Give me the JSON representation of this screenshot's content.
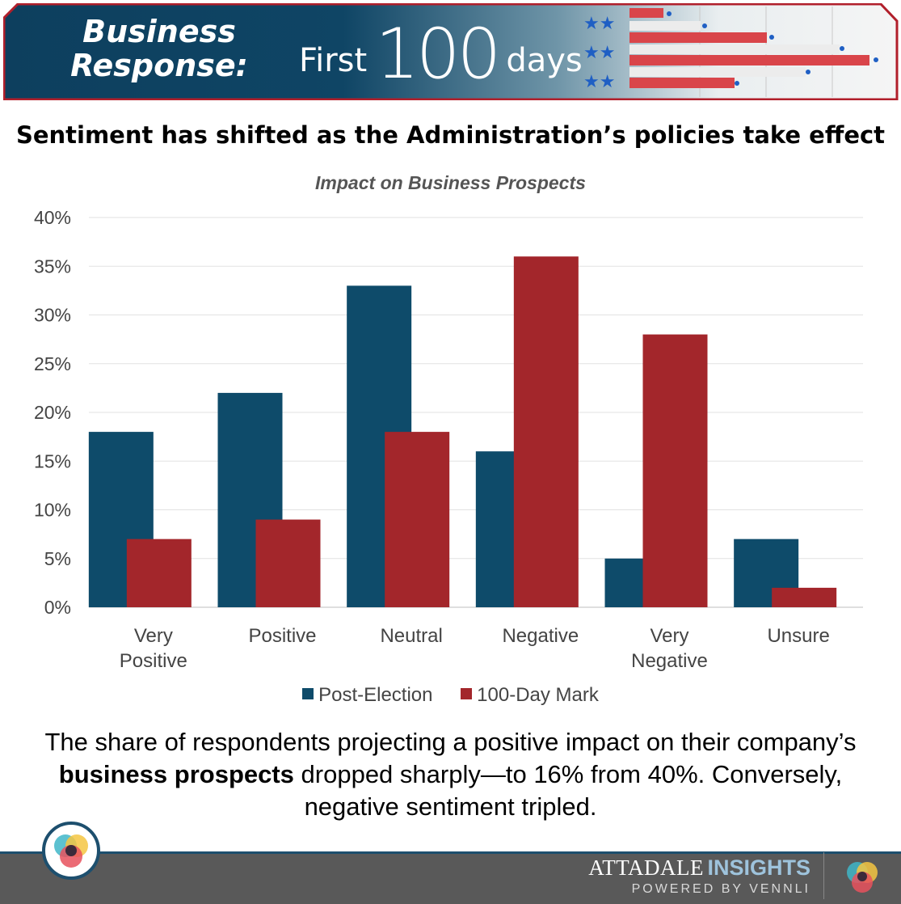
{
  "header": {
    "title_line1": "Business",
    "title_line2": "Response:",
    "first_word": "First",
    "number": "100",
    "last_word": "days"
  },
  "headline": "Sentiment has shifted as the Administration’s policies take effect",
  "chart_data": {
    "type": "bar",
    "title": "Impact on Business Prospects",
    "categories": [
      [
        "Very",
        "Positive"
      ],
      [
        "Positive"
      ],
      [
        "Neutral"
      ],
      [
        "Negative"
      ],
      [
        "Very",
        "Negative"
      ],
      [
        "Unsure"
      ]
    ],
    "series": [
      {
        "name": "Post-Election",
        "values": [
          18,
          22,
          33,
          16,
          5,
          7
        ],
        "color": "#0e4b6a"
      },
      {
        "name": "100-Day Mark",
        "values": [
          7,
          9,
          18,
          36,
          28,
          2
        ],
        "color": "#a3262b"
      }
    ],
    "ylim": [
      0,
      40
    ],
    "yticks": [
      0,
      5,
      10,
      15,
      20,
      25,
      30,
      35,
      40
    ],
    "ytick_labels": [
      "0%",
      "5%",
      "10%",
      "15%",
      "20%",
      "25%",
      "30%",
      "35%",
      "40%"
    ],
    "grid": true,
    "legend": "bottom"
  },
  "caption": {
    "part1": "The share of respondents projecting a positive impact on their company’s ",
    "bold": "business prospects",
    "part2": " dropped sharply—to 16% from 40%. Conversely, negative sentiment tripled."
  },
  "footer": {
    "brand_name": "ATTADALE",
    "brand_insights": "INSIGHTS",
    "powered_by": "POWERED BY VENNLI"
  },
  "colors": {
    "banner_dark": "#0d3f5e",
    "banner_border": "#b11f2b",
    "footer_bg": "#595959"
  }
}
